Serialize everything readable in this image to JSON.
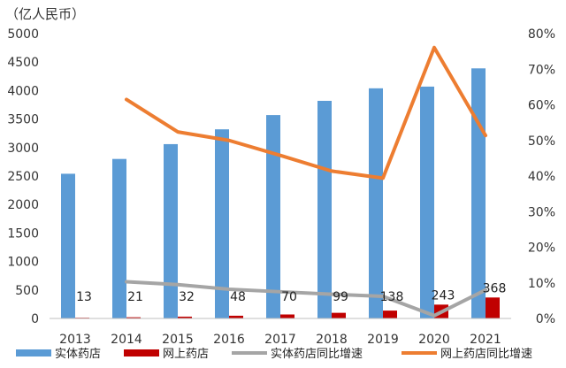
{
  "chart_data": {
    "type": "bar",
    "unit_label": "（亿人民币）",
    "categories": [
      "2013",
      "2014",
      "2015",
      "2016",
      "2017",
      "2018",
      "2019",
      "2020",
      "2021"
    ],
    "ylim": [
      0,
      5000
    ],
    "y_ticks": [
      "0",
      "500",
      "1000",
      "1500",
      "2000",
      "2500",
      "3000",
      "3500",
      "4000",
      "4500",
      "5000"
    ],
    "y2lim": [
      0,
      0.8
    ],
    "y2_ticks": [
      "0%",
      "10%",
      "20%",
      "30%",
      "40%",
      "50%",
      "60%",
      "70%",
      "80%"
    ],
    "series": [
      {
        "name": "实体药店",
        "kind": "bar",
        "axis": "left",
        "color": "#5B9BD5",
        "values": [
          2540,
          2800,
          3060,
          3320,
          3570,
          3820,
          4040,
          4070,
          4390
        ]
      },
      {
        "name": "网上药店",
        "kind": "bar",
        "axis": "left",
        "color": "#C00000",
        "values": [
          13,
          21,
          32,
          48,
          70,
          99,
          138,
          243,
          368
        ],
        "data_labels": [
          "13",
          "21",
          "32",
          "48",
          "70",
          "99",
          "138",
          "243",
          "368"
        ]
      },
      {
        "name": "实体药店同比增速",
        "kind": "line",
        "axis": "right",
        "color": "#A5A5A5",
        "values": [
          null,
          0.103,
          0.095,
          0.082,
          0.075,
          0.068,
          0.062,
          0.008,
          0.08
        ]
      },
      {
        "name": "网上药店同比增速",
        "kind": "line",
        "axis": "right",
        "color": "#ED7D31",
        "values": [
          null,
          0.615,
          0.524,
          0.5,
          0.458,
          0.414,
          0.394,
          0.761,
          0.514
        ]
      }
    ],
    "grid": false,
    "legend_position": "bottom"
  }
}
